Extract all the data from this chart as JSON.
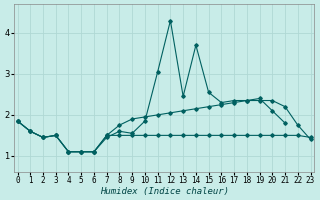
{
  "title": "",
  "xlabel": "Humidex (Indice chaleur)",
  "ylabel": "",
  "background_color": "#c8ece8",
  "grid_color": "#b0d8d4",
  "line_color": "#006060",
  "x_values": [
    0,
    1,
    2,
    3,
    4,
    5,
    6,
    7,
    8,
    9,
    10,
    11,
    12,
    13,
    14,
    15,
    16,
    17,
    18,
    19,
    20,
    21,
    22,
    23
  ],
  "series": {
    "line1_spiky": [
      1.85,
      1.6,
      1.45,
      1.5,
      1.1,
      1.1,
      1.1,
      1.45,
      1.6,
      1.55,
      1.85,
      3.05,
      4.3,
      2.45,
      3.7,
      2.55,
      2.3,
      2.35,
      2.35,
      2.4,
      2.1,
      1.8,
      null,
      null
    ],
    "line2_smooth": [
      1.85,
      1.6,
      1.45,
      1.5,
      1.1,
      1.1,
      1.1,
      1.5,
      1.75,
      1.9,
      1.95,
      2.0,
      2.05,
      2.1,
      2.15,
      2.2,
      2.25,
      2.3,
      2.35,
      2.35,
      2.35,
      2.2,
      1.75,
      1.4
    ],
    "line3_flat": [
      1.85,
      1.6,
      1.45,
      1.5,
      1.1,
      1.1,
      1.1,
      1.5,
      1.5,
      1.5,
      1.5,
      1.5,
      1.5,
      1.5,
      1.5,
      1.5,
      1.5,
      1.5,
      1.5,
      1.5,
      1.5,
      1.5,
      1.5,
      1.45
    ]
  },
  "ylim": [
    0.6,
    4.7
  ],
  "xlim": [
    -0.3,
    23.3
  ],
  "yticks": [
    1,
    2,
    3,
    4
  ],
  "xlabel_fontsize": 6.5,
  "tick_fontsize": 5.5
}
